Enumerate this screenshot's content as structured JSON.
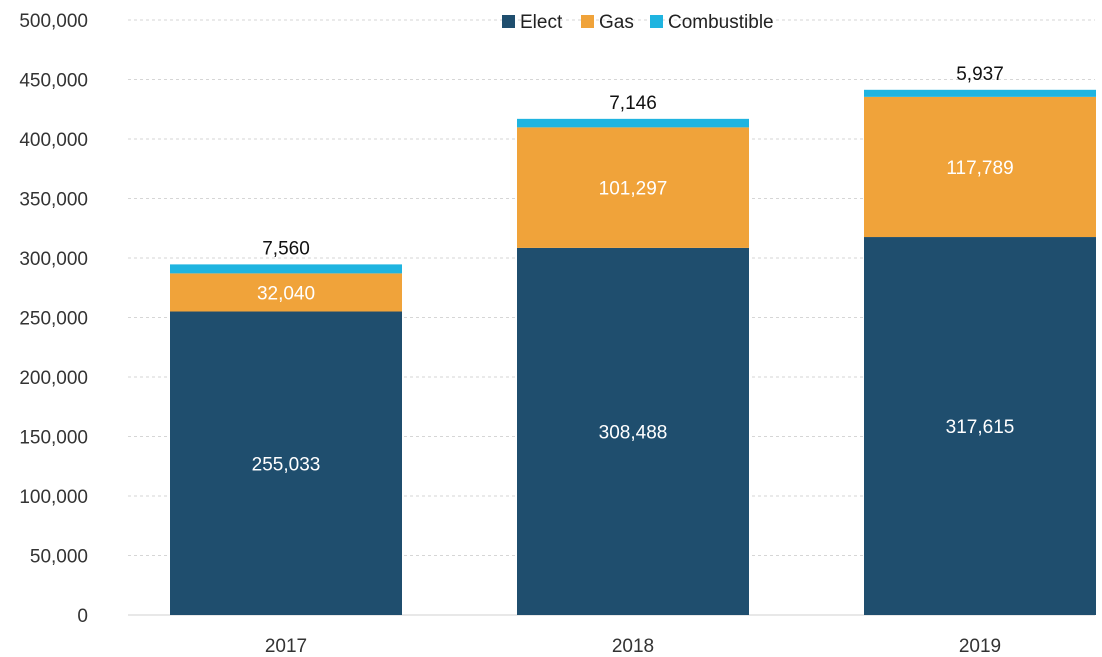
{
  "chart_data": {
    "type": "bar",
    "stacked": true,
    "categories": [
      "2017",
      "2018",
      "2019"
    ],
    "series": [
      {
        "name": "Elect",
        "values": [
          255033,
          308488,
          317615
        ],
        "color": "#1f4e6e"
      },
      {
        "name": "Gas",
        "values": [
          32040,
          101297,
          117789
        ],
        "color": "#f0a33a"
      },
      {
        "name": "Combustible",
        "values": [
          7560,
          7146,
          5937
        ],
        "color": "#1fb4e0"
      }
    ],
    "ylim": [
      0,
      500000
    ],
    "yticks": [
      "0",
      "50,000",
      "100,000",
      "150,000",
      "200,000",
      "250,000",
      "300,000",
      "350,000",
      "400,000",
      "450,000",
      "500,000"
    ],
    "data_labels": {
      "Elect": [
        "255,033",
        "308,488",
        "317,615"
      ],
      "Gas": [
        "32,040",
        "101,297",
        "117,789"
      ],
      "Combustible": [
        "7,560",
        "7,146",
        "5,937"
      ]
    },
    "legend_position": "top",
    "grid": true
  }
}
